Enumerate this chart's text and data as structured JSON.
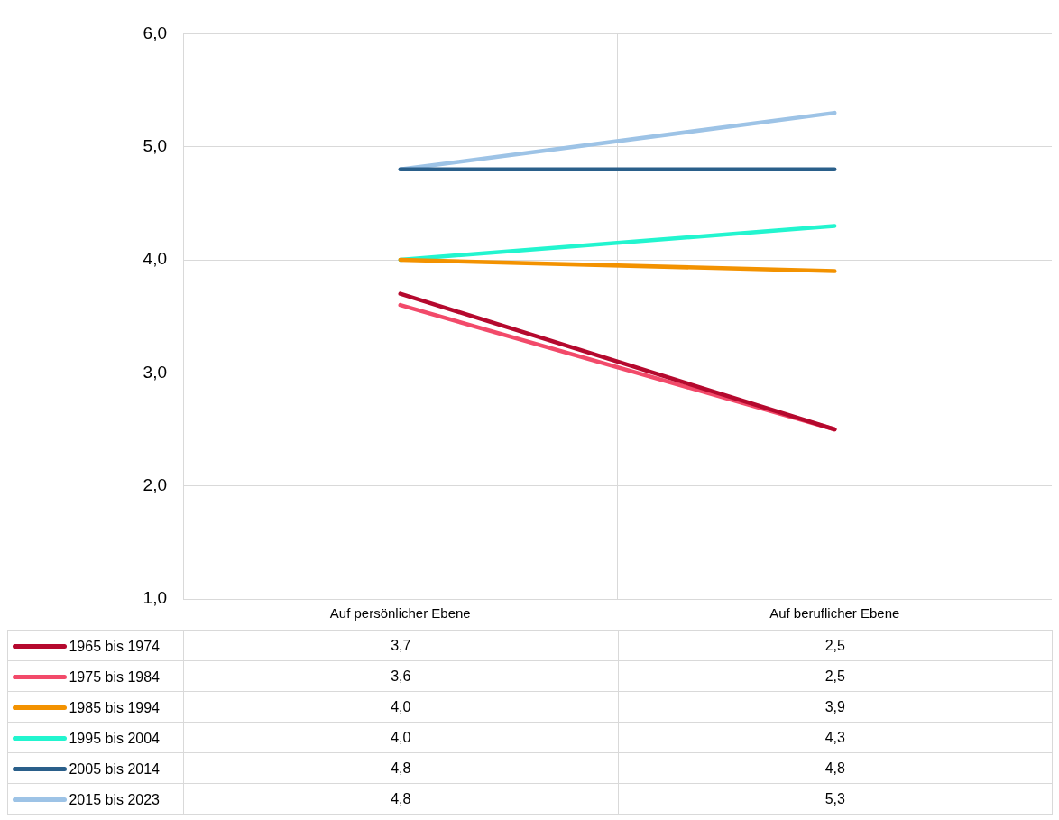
{
  "chart_data": {
    "type": "line",
    "categories": [
      "Auf persönlicher Ebene",
      "Auf beruflicher Ebene"
    ],
    "series": [
      {
        "name": "1965 bis 1974",
        "color": "#b5092e",
        "values": [
          3.7,
          2.5
        ],
        "value_labels": [
          "3,7",
          "2,5"
        ]
      },
      {
        "name": "1975 bis 1984",
        "color": "#f24a6a",
        "values": [
          3.6,
          2.5
        ],
        "value_labels": [
          "3,6",
          "2,5"
        ]
      },
      {
        "name": "1985 bis 1994",
        "color": "#f39200",
        "values": [
          4.0,
          3.9
        ],
        "value_labels": [
          "4,0",
          "3,9"
        ]
      },
      {
        "name": "1995 bis 2004",
        "color": "#22f5cf",
        "values": [
          4.0,
          4.3
        ],
        "value_labels": [
          "4,0",
          "4,3"
        ]
      },
      {
        "name": "2005 bis 2014",
        "color": "#2a5f8a",
        "values": [
          4.8,
          4.8
        ],
        "value_labels": [
          "4,8",
          "4,8"
        ]
      },
      {
        "name": "2015 bis 2023",
        "color": "#9dc3e6",
        "values": [
          4.8,
          5.3
        ],
        "value_labels": [
          "4,8",
          "5,3"
        ]
      }
    ],
    "ylim": [
      1,
      6
    ],
    "yticks": [
      {
        "value": 1,
        "label": "1,0"
      },
      {
        "value": 2,
        "label": "2,0"
      },
      {
        "value": 3,
        "label": "3,0"
      },
      {
        "value": 4,
        "label": "4,0"
      },
      {
        "value": 5,
        "label": "5,0"
      },
      {
        "value": 6,
        "label": "6,0"
      }
    ],
    "grid": true,
    "legend": "bottom",
    "marker": "none",
    "line_style": "solid"
  }
}
